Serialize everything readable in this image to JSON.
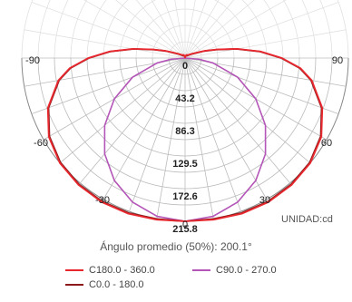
{
  "chart_data": {
    "type": "polar-line",
    "angle_labels": [
      "0",
      "30",
      "60",
      "90",
      "-30",
      "-60",
      "-90"
    ],
    "radial_ticks": [
      0,
      43.2,
      86.3,
      129.5,
      172.6,
      215.8
    ],
    "radial_tick_labels": [
      "0",
      "43.2",
      "86.3",
      "129.5",
      "172.6",
      "215.8"
    ],
    "rmax": 215.8,
    "unit_label": "UNIDAD:cd",
    "average_angle_text": "Ángulo promedio (50%): 200.1°",
    "series": [
      {
        "name": "C180.0 - 360.0",
        "color": "#e8282e",
        "angles_deg": [
          0,
          10,
          20,
          30,
          40,
          50,
          60,
          70,
          80,
          85,
          90,
          95,
          100,
          105,
          110,
          120,
          130,
          140,
          150,
          160,
          170,
          180
        ],
        "values": [
          215.8,
          217,
          219,
          220,
          219,
          216,
          208,
          193,
          170,
          153,
          128,
          100,
          70,
          44,
          28,
          12,
          7,
          5,
          5,
          4,
          2,
          0
        ]
      },
      {
        "name": "C0.0 - 180.0",
        "color": "#8b1a1a",
        "angles_deg": [
          0,
          10,
          20,
          30,
          40,
          50,
          60,
          70,
          80,
          85,
          90,
          95,
          100,
          105,
          110,
          120,
          130,
          140,
          150,
          160,
          170,
          180
        ],
        "values": [
          215.8,
          216,
          218,
          219,
          218,
          215,
          207,
          192,
          169,
          152,
          127,
          99,
          69,
          43,
          27,
          11,
          6,
          4,
          4,
          3,
          2,
          0
        ]
      },
      {
        "name": "C90.0 - 270.0",
        "color": "#b455b8",
        "angles_deg": [
          0,
          10,
          20,
          30,
          40,
          50,
          60,
          70,
          80,
          85,
          90
        ],
        "values": [
          215.8,
          212.5,
          202.8,
          186.9,
          165.3,
          138.7,
          107.9,
          73.8,
          37.5,
          18.8,
          0
        ]
      }
    ]
  }
}
